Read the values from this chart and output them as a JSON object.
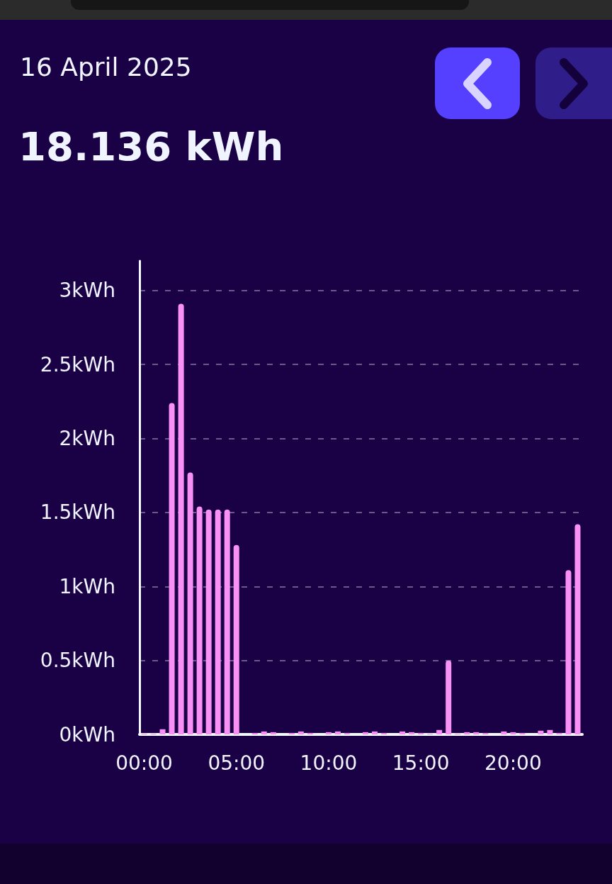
{
  "chart_data": {
    "type": "bar",
    "title": "16 April 2025",
    "subtitle": "18.136 kWh",
    "categories": [
      "00:00",
      null,
      null,
      null,
      null,
      null,
      null,
      null,
      null,
      null,
      "05:00",
      null,
      null,
      null,
      null,
      null,
      null,
      null,
      null,
      null,
      "10:00",
      null,
      null,
      null,
      null,
      null,
      null,
      null,
      null,
      null,
      "15:00",
      null,
      null,
      null,
      null,
      null,
      null,
      null,
      null,
      null,
      "20:00",
      null,
      null,
      null,
      null,
      null,
      null,
      null
    ],
    "values": [
      0.005,
      0.005,
      0.035,
      2.24,
      2.91,
      1.77,
      1.54,
      1.52,
      1.52,
      1.52,
      1.28,
      0,
      0.01,
      0.02,
      0.015,
      0,
      0.01,
      0.02,
      0.01,
      0,
      0.015,
      0.02,
      0.01,
      0,
      0.015,
      0.02,
      0.01,
      0,
      0.02,
      0.015,
      0.01,
      0.005,
      0.03,
      0.5,
      0.005,
      0.015,
      0.015,
      0.01,
      0,
      0.02,
      0.015,
      0.01,
      0,
      0.025,
      0.03,
      0.01,
      1.11,
      1.42
    ],
    "color": "#f990f5",
    "ylim": [
      0,
      3.2
    ],
    "yticks": [
      {
        "value": 0,
        "label": "0kWh"
      },
      {
        "value": 0.5,
        "label": "0.5kWh"
      },
      {
        "value": 1,
        "label": "1kWh"
      },
      {
        "value": 1.5,
        "label": "1.5kWh"
      },
      {
        "value": 2,
        "label": "2kWh"
      },
      {
        "value": 2.5,
        "label": "2.5kWh"
      },
      {
        "value": 3,
        "label": "3kWh"
      }
    ],
    "grid": "y"
  }
}
